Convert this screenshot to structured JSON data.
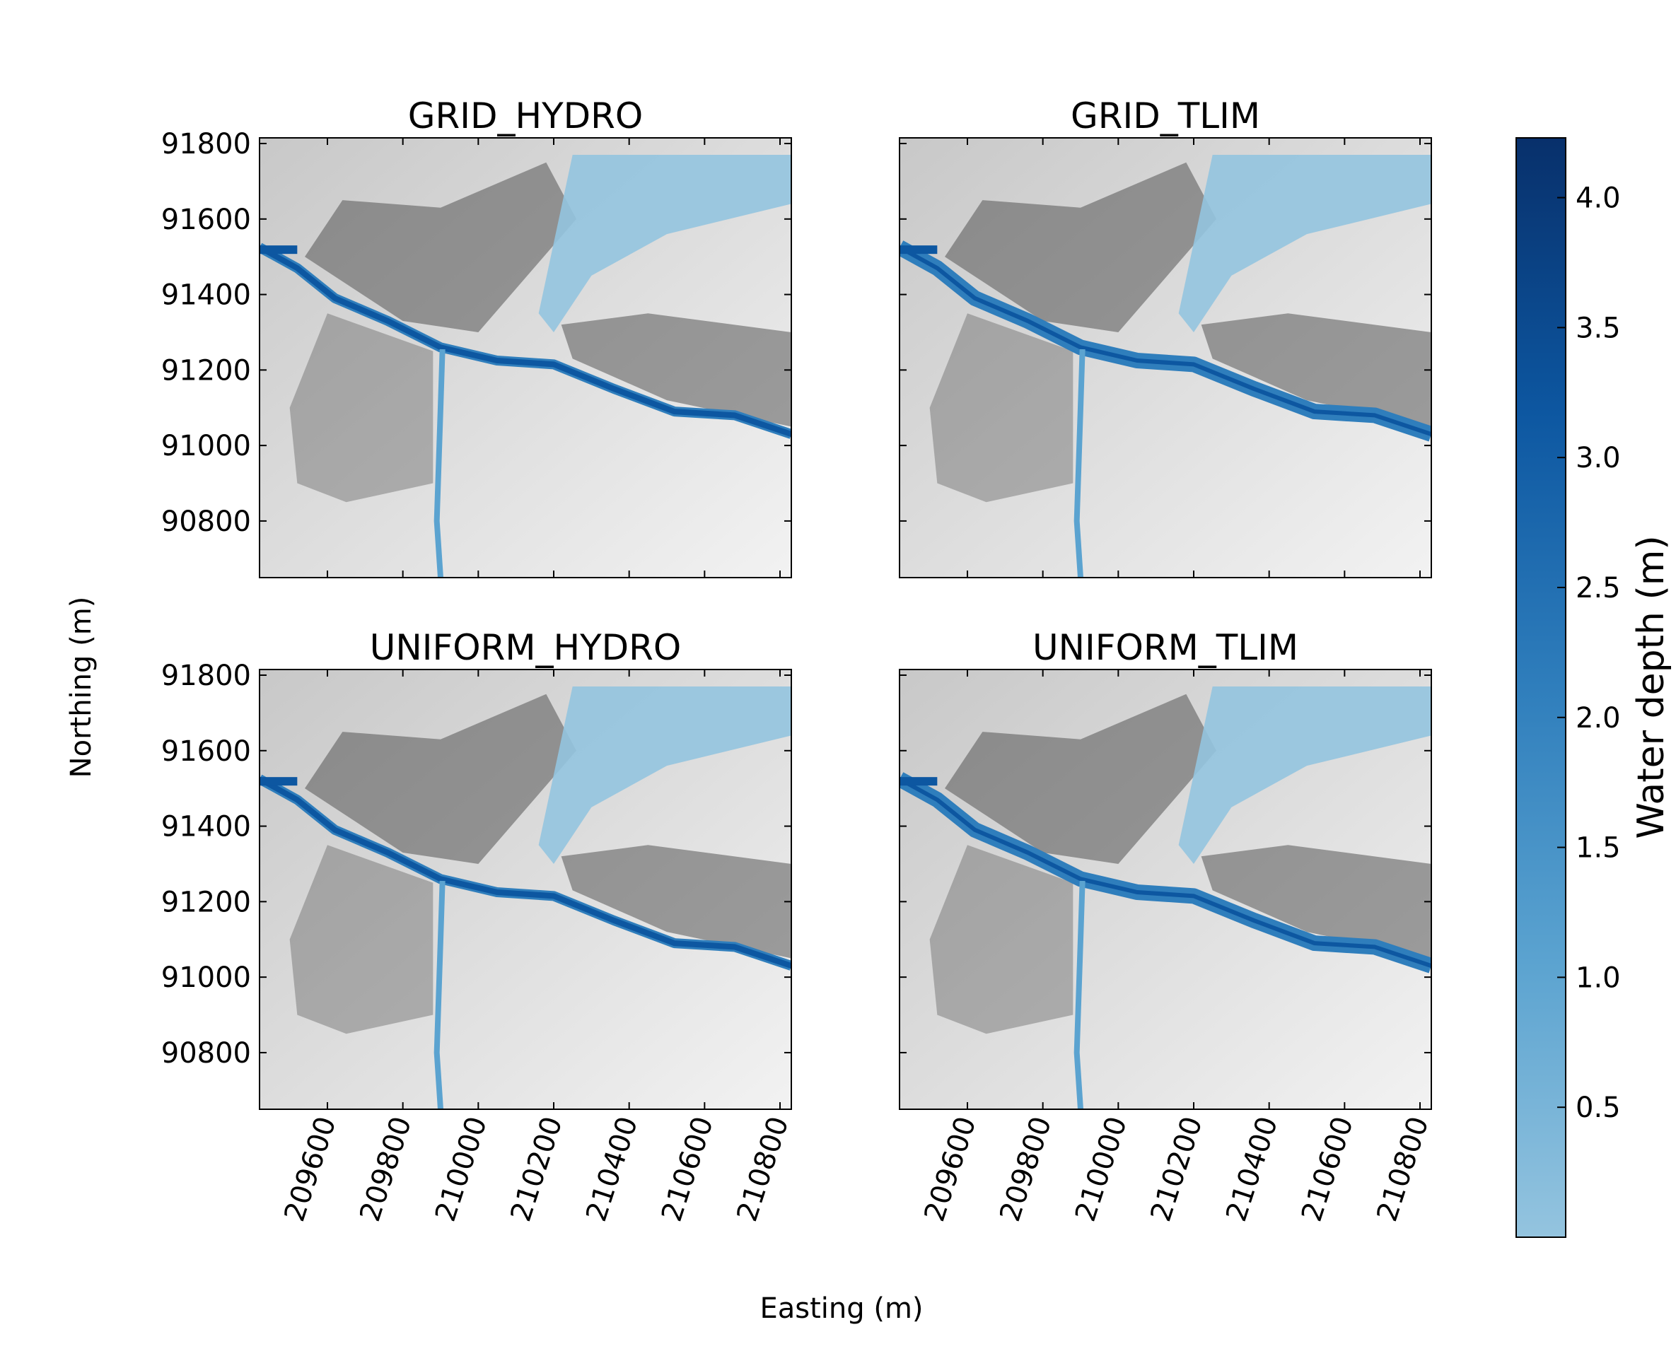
{
  "figure": {
    "xlabel": "Easting (m)",
    "ylabel": "Northing (m)"
  },
  "chart_data": {
    "type": "heatmap",
    "panels": [
      {
        "title": "GRID_HYDRO"
      },
      {
        "title": "GRID_TLIM"
      },
      {
        "title": "UNIFORM_HYDRO"
      },
      {
        "title": "UNIFORM_TLIM"
      }
    ],
    "x_ticks": [
      "209600",
      "209800",
      "210000",
      "210200",
      "210400",
      "210600",
      "210800"
    ],
    "x_tick_values": [
      209600,
      209800,
      210000,
      210200,
      210400,
      210600,
      210800
    ],
    "y_ticks": [
      "91800",
      "91600",
      "91400",
      "91200",
      "91000",
      "90800"
    ],
    "y_tick_values": [
      91800,
      91600,
      91400,
      91200,
      91000,
      90800
    ],
    "xlim": [
      209420,
      210830
    ],
    "ylim": [
      90650,
      91815
    ],
    "colorbar": {
      "label": "Water depth (m)",
      "ticks": [
        "4.0",
        "3.5",
        "3.0",
        "2.5",
        "2.0",
        "1.5",
        "1.0",
        "0.5"
      ],
      "tick_values": [
        4.0,
        3.5,
        3.0,
        2.5,
        2.0,
        1.5,
        1.0,
        0.5
      ],
      "range": [
        0.0,
        4.23
      ],
      "colormap": "Blues",
      "color_low": "#94c4df",
      "color_high": "#08306b"
    },
    "river_path": [
      [
        209420,
        91525
      ],
      [
        209520,
        91470
      ],
      [
        209620,
        91390
      ],
      [
        209760,
        91330
      ],
      [
        209900,
        91260
      ],
      [
        210050,
        91225
      ],
      [
        210200,
        91215
      ],
      [
        210360,
        91150
      ],
      [
        210520,
        91090
      ],
      [
        210680,
        91080
      ],
      [
        210830,
        91030
      ]
    ],
    "tributary_path": [
      [
        209905,
        91255
      ],
      [
        209900,
        91100
      ],
      [
        209895,
        90950
      ],
      [
        209890,
        90800
      ],
      [
        209900,
        90650
      ]
    ],
    "background": "hillshade terrain"
  }
}
